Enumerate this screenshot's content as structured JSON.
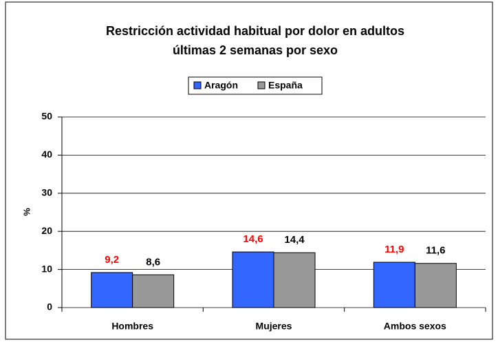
{
  "chart_data": {
    "type": "bar",
    "title": [
      "Restricción actividad habitual por dolor en adultos",
      "últimas 2 semanas por sexo"
    ],
    "y_label": "%",
    "categories": [
      "Hombres",
      "Mujeres",
      "Ambos sexos"
    ],
    "series": [
      {
        "name": "Aragón",
        "color": "#3366ff",
        "label_color": "#ff0000",
        "values": [
          9.2,
          14.6,
          11.9
        ],
        "value_labels": [
          "9,2",
          "14,6",
          "11,9"
        ]
      },
      {
        "name": "España",
        "color": "#999999",
        "label_color": "#000000",
        "values": [
          8.6,
          14.4,
          11.6
        ],
        "value_labels": [
          "8,6",
          "14,4",
          "11,6"
        ]
      }
    ],
    "ylim": [
      0,
      50
    ],
    "yticks": [
      0,
      10,
      20,
      30,
      40,
      50
    ],
    "grid": true,
    "legend": "top"
  }
}
